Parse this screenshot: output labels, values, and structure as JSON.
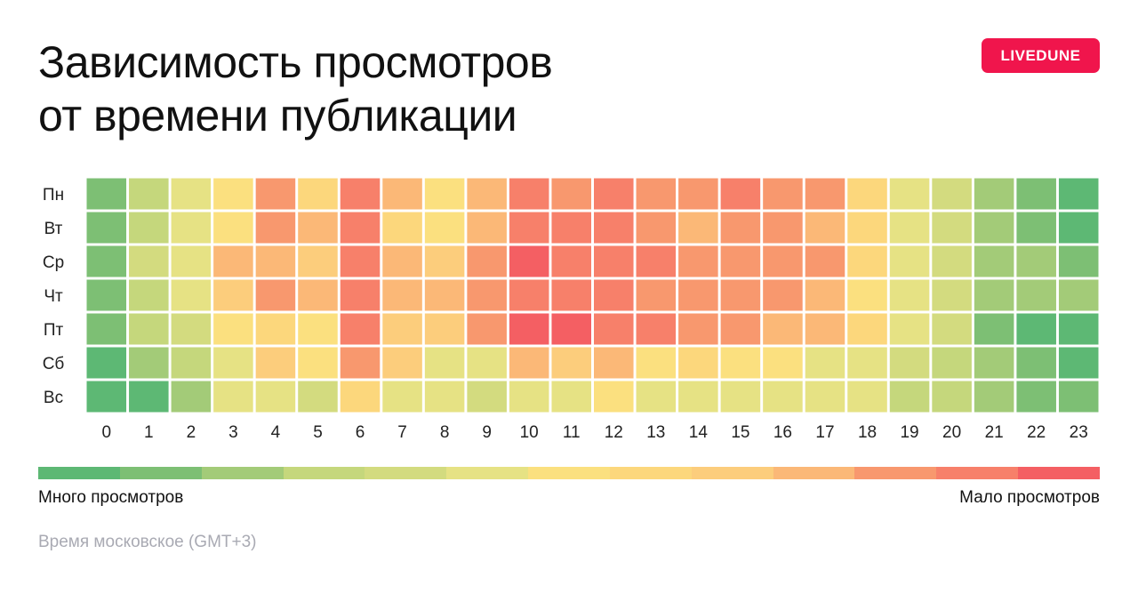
{
  "title": [
    "Зависимость просмотров",
    "от времени публикации"
  ],
  "logo": "LIVEDUNE",
  "chart_data": {
    "type": "heatmap",
    "y_categories": [
      "Пн",
      "Вт",
      "Ср",
      "Чт",
      "Пт",
      "Сб",
      "Вс"
    ],
    "x_categories": [
      "0",
      "1",
      "2",
      "3",
      "4",
      "5",
      "6",
      "7",
      "8",
      "9",
      "10",
      "11",
      "12",
      "13",
      "14",
      "15",
      "16",
      "17",
      "18",
      "19",
      "20",
      "21",
      "22",
      "23"
    ],
    "scale_note": "level 1 = most views (green), level 13 = fewest views (red)",
    "color_scale": [
      "#5db874",
      "#7dbf74",
      "#a3cb78",
      "#c5d77c",
      "#d3db7f",
      "#e6e284",
      "#fbe07f",
      "#fcd77c",
      "#fccd7c",
      "#fbb877",
      "#f8986e",
      "#f7806a",
      "#f45f63"
    ],
    "values": [
      [
        2,
        4,
        6,
        7,
        11,
        8,
        12,
        10,
        7,
        10,
        12,
        11,
        12,
        11,
        11,
        12,
        11,
        11,
        8,
        6,
        5,
        3,
        2,
        1
      ],
      [
        2,
        4,
        6,
        7,
        11,
        10,
        12,
        8,
        7,
        10,
        12,
        12,
        12,
        11,
        10,
        11,
        11,
        10,
        8,
        6,
        5,
        3,
        2,
        1
      ],
      [
        2,
        5,
        6,
        10,
        10,
        9,
        12,
        10,
        9,
        11,
        13,
        12,
        12,
        12,
        11,
        11,
        11,
        11,
        8,
        6,
        5,
        3,
        3,
        2
      ],
      [
        2,
        4,
        6,
        9,
        11,
        10,
        12,
        10,
        10,
        11,
        12,
        12,
        12,
        11,
        11,
        11,
        11,
        10,
        7,
        6,
        5,
        3,
        3,
        3
      ],
      [
        2,
        4,
        5,
        7,
        8,
        7,
        12,
        9,
        9,
        11,
        13,
        13,
        12,
        12,
        11,
        11,
        10,
        10,
        8,
        6,
        5,
        2,
        1,
        1
      ],
      [
        1,
        3,
        4,
        6,
        9,
        7,
        11,
        9,
        6,
        6,
        10,
        9,
        10,
        7,
        8,
        7,
        7,
        6,
        6,
        5,
        4,
        3,
        2,
        1
      ],
      [
        1,
        1,
        3,
        6,
        6,
        5,
        8,
        6,
        6,
        5,
        6,
        6,
        7,
        6,
        6,
        6,
        6,
        6,
        6,
        4,
        4,
        3,
        2,
        2
      ]
    ],
    "legend": {
      "low_label": "Много просмотров",
      "high_label": "Мало просмотров"
    }
  },
  "footnote": "Время московское (GMT+3)"
}
